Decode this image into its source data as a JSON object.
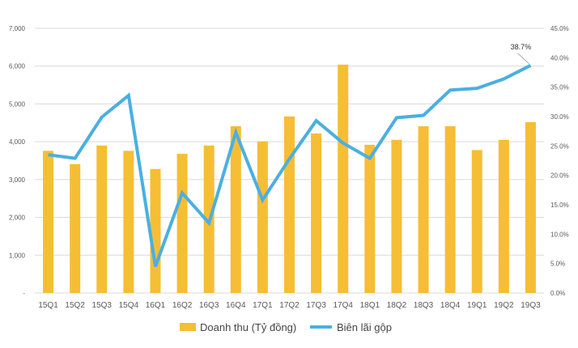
{
  "chart_data": {
    "type": "bar+line",
    "categories": [
      "15Q1",
      "15Q2",
      "15Q3",
      "15Q4",
      "16Q1",
      "16Q2",
      "16Q3",
      "16Q4",
      "17Q1",
      "17Q2",
      "17Q3",
      "17Q4",
      "18Q1",
      "18Q2",
      "18Q3",
      "18Q4",
      "19Q1",
      "19Q2",
      "19Q3"
    ],
    "series": [
      {
        "name": "Doanh thu (Tỷ đồng)",
        "type": "bar",
        "axis": "left",
        "color": "#F6BE34",
        "values": [
          3760,
          3410,
          3900,
          3760,
          3280,
          3680,
          3900,
          4410,
          4010,
          4670,
          4220,
          6040,
          3920,
          4050,
          4410,
          4410,
          3780,
          4050,
          4520
        ]
      },
      {
        "name": "Biên lãi gộp",
        "type": "line",
        "axis": "right",
        "color": "#4AAFE2",
        "values": [
          23.5,
          22.9,
          29.9,
          33.6,
          4.5,
          17.0,
          11.9,
          27.3,
          15.8,
          22.8,
          29.3,
          25.5,
          22.9,
          29.8,
          30.2,
          34.5,
          34.8,
          36.4,
          38.7
        ]
      }
    ],
    "left_axis": {
      "ylim": [
        0,
        7000
      ],
      "ticks": [
        "-",
        "1,000",
        "2,000",
        "3,000",
        "4,000",
        "5,000",
        "6,000",
        "7,000"
      ]
    },
    "right_axis": {
      "ylim": [
        0,
        45
      ],
      "ticks": [
        "0.0%",
        "5.0%",
        "10.0%",
        "15.0%",
        "20.0%",
        "25.0%",
        "30.0%",
        "35.0%",
        "40.0%",
        "45.0%"
      ]
    },
    "annotation": "38.7%",
    "grid": true,
    "legend": "bottom"
  }
}
